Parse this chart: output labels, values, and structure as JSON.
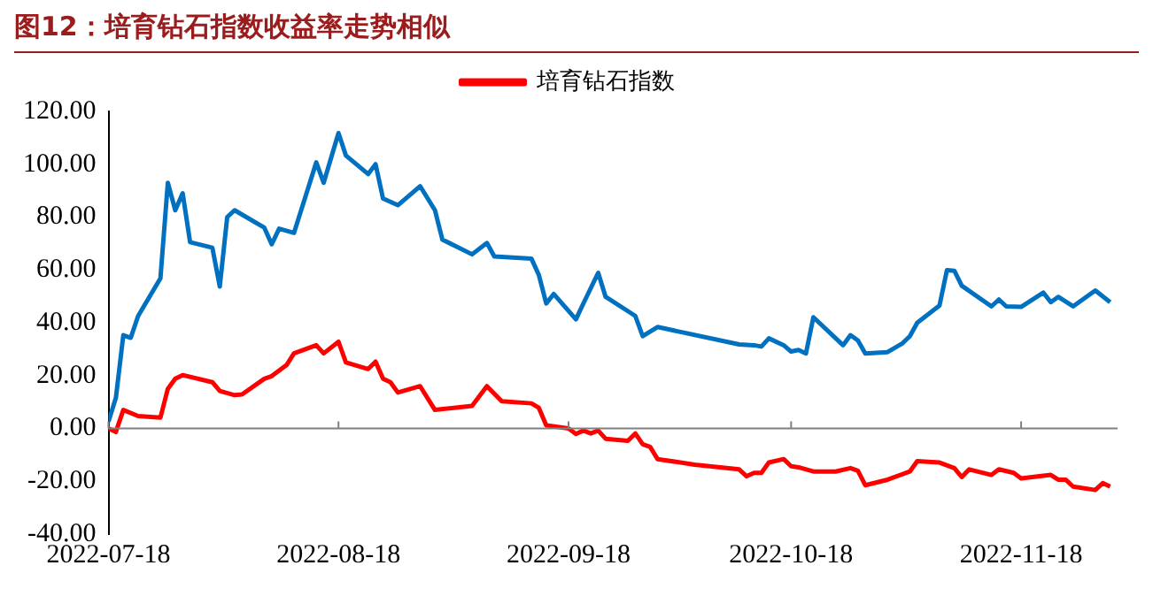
{
  "chart_data": {
    "type": "line",
    "title": "图12：培育钻石指数收益率走势相似",
    "xlim": [
      "2022-07-18",
      "2022-12-01"
    ],
    "xticks": [
      "2022-07-18",
      "2022-08-18",
      "2022-09-18",
      "2022-10-18",
      "2022-11-18"
    ],
    "ylim": [
      -40,
      120
    ],
    "yticks": [
      {
        "value": -40,
        "label": "-40.00"
      },
      {
        "value": -20,
        "label": "-20.00"
      },
      {
        "value": 0,
        "label": "0.00"
      },
      {
        "value": 20,
        "label": "20.00"
      },
      {
        "value": 40,
        "label": "40.00"
      },
      {
        "value": 60,
        "label": "60.00"
      },
      {
        "value": 80,
        "label": "80.00"
      },
      {
        "value": 100,
        "label": "100.00"
      },
      {
        "value": 120,
        "label": "120.00"
      }
    ],
    "grid": false,
    "ref_lines": [
      {
        "axis": "y",
        "value": 0,
        "color": "#808080"
      }
    ],
    "legend": "top",
    "marker": "none",
    "line_style": "solid",
    "series": [
      {
        "color": "#0070c0",
        "x": [
          "2022-07-18",
          "2022-07-19",
          "2022-07-20",
          "2022-07-21",
          "2022-07-22",
          "2022-07-25",
          "2022-07-26",
          "2022-07-27",
          "2022-07-28",
          "2022-07-29",
          "2022-08-01",
          "2022-08-02",
          "2022-08-03",
          "2022-08-04",
          "2022-08-08",
          "2022-08-09",
          "2022-08-10",
          "2022-08-12",
          "2022-08-15",
          "2022-08-16",
          "2022-08-18",
          "2022-08-19",
          "2022-08-22",
          "2022-08-23",
          "2022-08-24",
          "2022-08-26",
          "2022-08-29",
          "2022-08-31",
          "2022-09-01",
          "2022-09-05",
          "2022-09-07",
          "2022-09-08",
          "2022-09-13",
          "2022-09-14",
          "2022-09-15",
          "2022-09-16",
          "2022-09-19",
          "2022-09-20",
          "2022-09-22",
          "2022-09-23",
          "2022-09-27",
          "2022-09-28",
          "2022-09-30",
          "2022-10-11",
          "2022-10-13",
          "2022-10-14",
          "2022-10-15",
          "2022-10-17",
          "2022-10-18",
          "2022-10-19",
          "2022-10-20",
          "2022-10-21",
          "2022-10-25",
          "2022-10-26",
          "2022-10-27",
          "2022-10-28",
          "2022-10-31",
          "2022-11-02",
          "2022-11-03",
          "2022-11-04",
          "2022-11-07",
          "2022-11-08",
          "2022-11-09",
          "2022-11-10",
          "2022-11-14",
          "2022-11-15",
          "2022-11-16",
          "2022-11-18",
          "2022-11-21",
          "2022-11-22",
          "2022-11-23",
          "2022-11-25",
          "2022-11-28",
          "2022-11-30"
        ],
        "values": [
          2.6,
          11.6,
          35.3,
          34.3,
          42.6,
          56.8,
          93,
          82.6,
          89,
          70.5,
          68.4,
          53.7,
          80,
          82.6,
          76,
          69.7,
          75.6,
          74,
          100.7,
          93,
          111.8,
          103.3,
          96.3,
          100,
          87,
          84.5,
          91.7,
          82.6,
          71.5,
          65.9,
          70.2,
          65.1,
          64.3,
          58.1,
          47.3,
          50.9,
          41.3,
          47.3,
          58.9,
          49.8,
          42.6,
          34.9,
          38.4,
          31.8,
          31.5,
          31,
          34.1,
          31.5,
          29.1,
          29.7,
          28.4,
          42.1,
          31.5,
          35.3,
          33.3,
          28.4,
          28.9,
          32.2,
          34.9,
          40,
          46.5,
          59.9,
          59.7,
          54,
          46.2,
          48.8,
          46.2,
          46,
          51.4,
          47.8,
          49.8,
          46.2,
          52.2,
          47.8
        ]
      },
      {
        "name": "培育钻石指数",
        "color": "#ff0000",
        "x": [
          "2022-07-18",
          "2022-07-19",
          "2022-07-20",
          "2022-07-22",
          "2022-07-25",
          "2022-07-26",
          "2022-07-27",
          "2022-07-28",
          "2022-08-01",
          "2022-08-02",
          "2022-08-04",
          "2022-08-05",
          "2022-08-08",
          "2022-08-09",
          "2022-08-11",
          "2022-08-12",
          "2022-08-15",
          "2022-08-16",
          "2022-08-18",
          "2022-08-19",
          "2022-08-22",
          "2022-08-23",
          "2022-08-24",
          "2022-08-25",
          "2022-08-26",
          "2022-08-29",
          "2022-08-31",
          "2022-09-05",
          "2022-09-07",
          "2022-09-09",
          "2022-09-13",
          "2022-09-14",
          "2022-09-15",
          "2022-09-18",
          "2022-09-19",
          "2022-09-20",
          "2022-09-21",
          "2022-09-22",
          "2022-09-23",
          "2022-09-26",
          "2022-09-27",
          "2022-09-28",
          "2022-09-29",
          "2022-09-30",
          "2022-10-05",
          "2022-10-11",
          "2022-10-12",
          "2022-10-13",
          "2022-10-14",
          "2022-10-15",
          "2022-10-17",
          "2022-10-18",
          "2022-10-19",
          "2022-10-21",
          "2022-10-24",
          "2022-10-26",
          "2022-10-27",
          "2022-10-28",
          "2022-10-31",
          "2022-11-03",
          "2022-11-04",
          "2022-11-07",
          "2022-11-09",
          "2022-11-10",
          "2022-11-11",
          "2022-11-14",
          "2022-11-15",
          "2022-11-17",
          "2022-11-18",
          "2022-11-22",
          "2022-11-23",
          "2022-11-24",
          "2022-11-25",
          "2022-11-28",
          "2022-11-29",
          "2022-11-30"
        ],
        "values": [
          0,
          -1.3,
          7,
          4.7,
          4.1,
          15,
          18.8,
          20.2,
          17.5,
          14.2,
          12.6,
          12.9,
          18.8,
          19.8,
          24,
          28.4,
          31.5,
          28.4,
          32.8,
          25,
          22.5,
          25.3,
          18.8,
          17.5,
          13.6,
          16,
          7,
          8.5,
          16,
          10.3,
          9.5,
          7.8,
          1.2,
          0,
          -2.1,
          -0.8,
          -1.9,
          -0.8,
          -3.9,
          -4.7,
          -1.9,
          -6,
          -7,
          -11.6,
          -13.7,
          -15.5,
          -18.1,
          -16.8,
          -16.8,
          -12.9,
          -11.6,
          -14.3,
          -14.7,
          -16.3,
          -16.3,
          -15,
          -16,
          -21.5,
          -19.4,
          -16.3,
          -12.4,
          -12.9,
          -15,
          -18.4,
          -15.5,
          -17.6,
          -15.5,
          -16.8,
          -18.9,
          -17.6,
          -19.4,
          -19.4,
          -22,
          -23.3,
          -20.7,
          -22
        ]
      }
    ]
  }
}
